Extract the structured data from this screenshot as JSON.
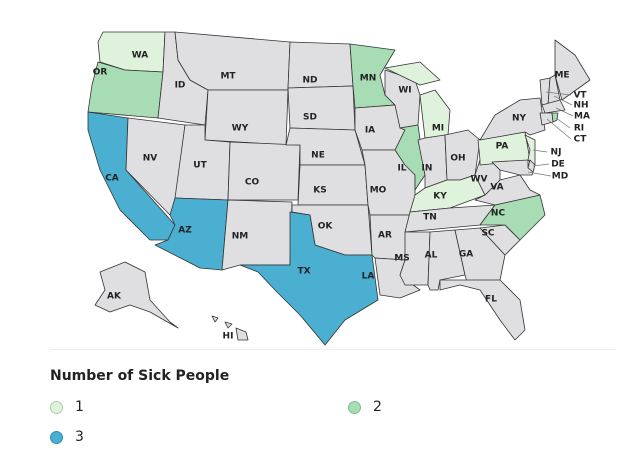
{
  "legend": {
    "title": "Number of Sick People",
    "items": [
      {
        "label": "1",
        "color": "#dff2dc",
        "border": "#a9d2a9"
      },
      {
        "label": "2",
        "color": "#a7dcb4",
        "border": "#7fbf92"
      },
      {
        "label": "3",
        "color": "#4bafd2",
        "border": "#2f8fb3"
      }
    ]
  },
  "colors": {
    "no_data": "#dfdfe2"
  },
  "state_values": {
    "WA": 1,
    "OR": 2,
    "CA": 3,
    "AZ": 3,
    "TX": 3,
    "MN": 2,
    "IL": 2,
    "MI": 1,
    "KY": 1,
    "PA": 1,
    "NJ": 1,
    "NC": 2,
    "RI": 2
  },
  "state_labels": [
    "WA",
    "OR",
    "CA",
    "NV",
    "ID",
    "MT",
    "WY",
    "UT",
    "AZ",
    "CO",
    "NM",
    "ND",
    "SD",
    "NE",
    "KS",
    "OK",
    "TX",
    "MN",
    "IA",
    "MO",
    "AR",
    "LA",
    "WI",
    "IL",
    "MI",
    "IN",
    "OH",
    "KY",
    "TN",
    "MS",
    "AL",
    "GA",
    "FL",
    "SC",
    "NC",
    "VA",
    "WV",
    "PA",
    "NY",
    "NJ",
    "DE",
    "MD",
    "VT",
    "NH",
    "ME",
    "MA",
    "CT",
    "RI",
    "AK",
    "HI"
  ]
}
